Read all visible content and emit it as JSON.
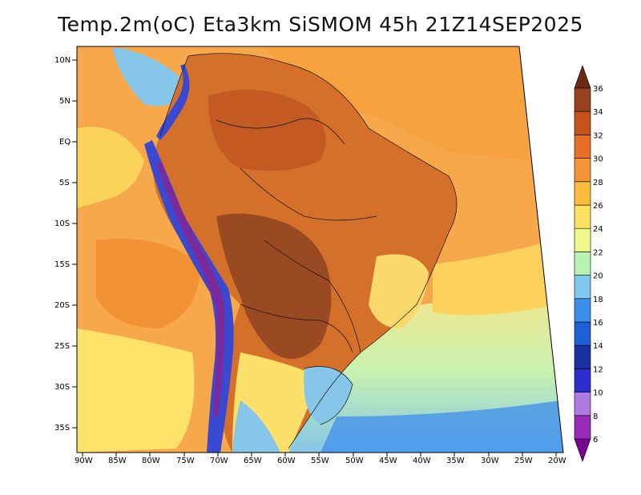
{
  "title": "Temp.2m(oC) Eta3km SiSMOM 45h 21Z14SEP2025",
  "latitude_labels": [
    "10N",
    "5N",
    "EQ",
    "5S",
    "10S",
    "15S",
    "20S",
    "25S",
    "30S",
    "35S"
  ],
  "longitude_labels": [
    "90W",
    "85W",
    "80W",
    "75W",
    "70W",
    "65W",
    "60W",
    "55W",
    "50W",
    "45W",
    "40W",
    "35W",
    "30W",
    "25W",
    "20W"
  ],
  "colorbar": {
    "unit": "oC",
    "levels": [
      "6",
      "8",
      "10",
      "12",
      "14",
      "16",
      "18",
      "20",
      "22",
      "24",
      "26",
      "28",
      "30",
      "32",
      "34",
      "36"
    ],
    "colors": [
      "#7a0090",
      "#9a2ab8",
      "#b07ae0",
      "#2c2ccf",
      "#1a2fa0",
      "#1f5fd8",
      "#3d8fec",
      "#80c8f0",
      "#b9f2b4",
      "#f0f78a",
      "#fde060",
      "#fbbd3c",
      "#f69536",
      "#e86e28",
      "#c6521c",
      "#9a4020",
      "#6a2a14"
    ]
  },
  "map_colors": {
    "ocean_pacific": "#f9a94a",
    "ocean_atlantic": "#f6a040",
    "land_hot": "#d4702a",
    "land_very_hot": "#9a4a22",
    "andes_cold": "#3a4ad0",
    "andes_peak": "#7a2a9a",
    "south_cool": "#86c6e8",
    "south_cold_sea": "#3d8fec"
  }
}
